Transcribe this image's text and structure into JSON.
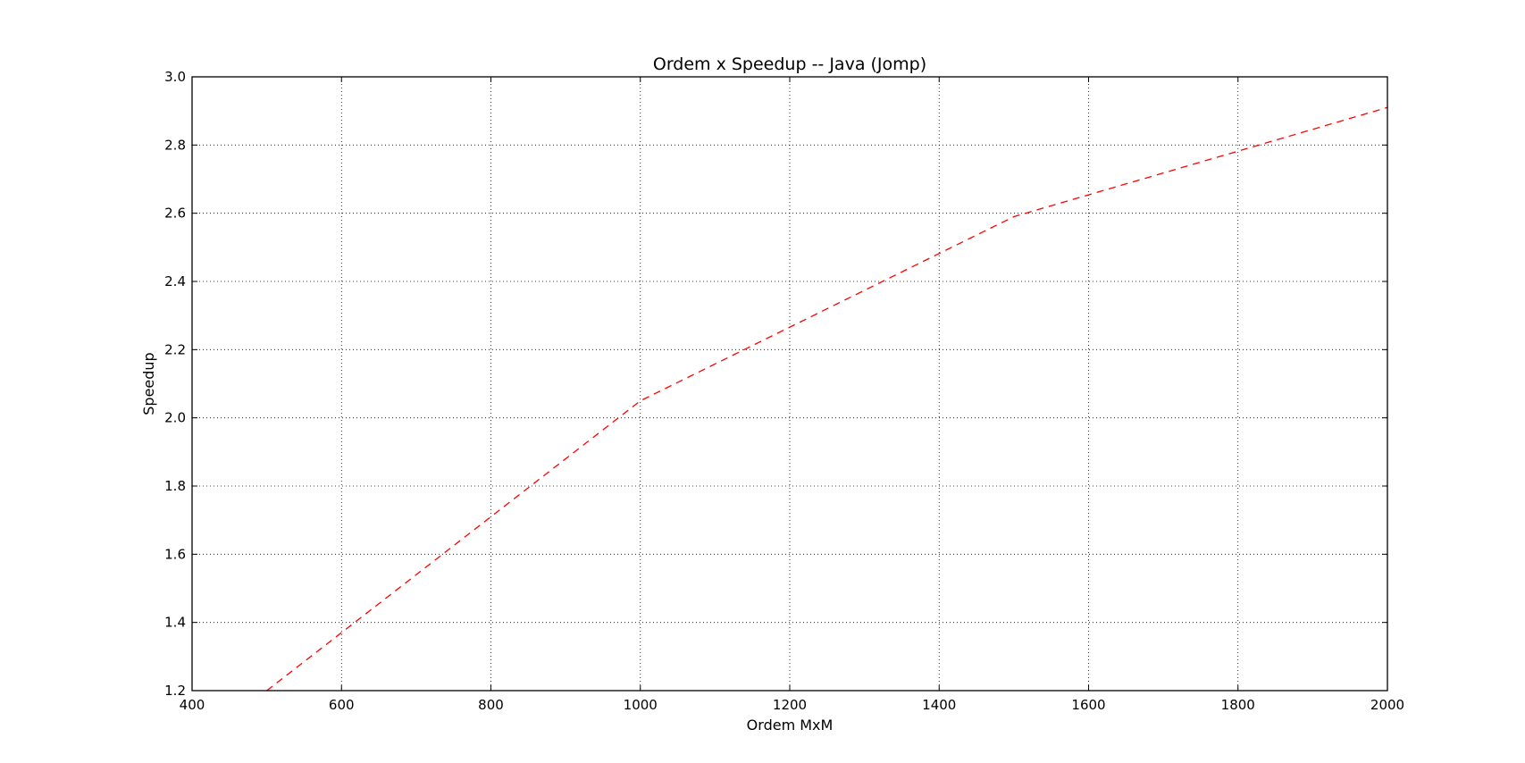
{
  "chart_data": {
    "type": "line",
    "title": "Ordem x Speedup -- Java (Jomp)",
    "xlabel": "Ordem MxM",
    "ylabel": "Speedup",
    "xlim": [
      400,
      2000
    ],
    "ylim": [
      1.2,
      3.0
    ],
    "x_ticks": [
      400,
      600,
      800,
      1000,
      1200,
      1400,
      1600,
      1800,
      2000
    ],
    "x_tick_labels": [
      "400",
      "600",
      "800",
      "1000",
      "1200",
      "1400",
      "1600",
      "1800",
      "2000"
    ],
    "y_ticks": [
      1.2,
      1.4,
      1.6,
      1.8,
      2.0,
      2.2,
      2.4,
      2.6,
      2.8,
      3.0
    ],
    "y_tick_labels": [
      "1.2",
      "1.4",
      "1.6",
      "1.8",
      "2.0",
      "2.2",
      "2.4",
      "2.6",
      "2.8",
      "3.0"
    ],
    "grid": true,
    "grid_style": "dotted",
    "series": [
      {
        "color": "#ff0000",
        "line_style": "dashed",
        "x": [
          500,
          1000,
          1500,
          2000
        ],
        "y": [
          1.2,
          2.05,
          2.59,
          2.91
        ]
      }
    ]
  }
}
